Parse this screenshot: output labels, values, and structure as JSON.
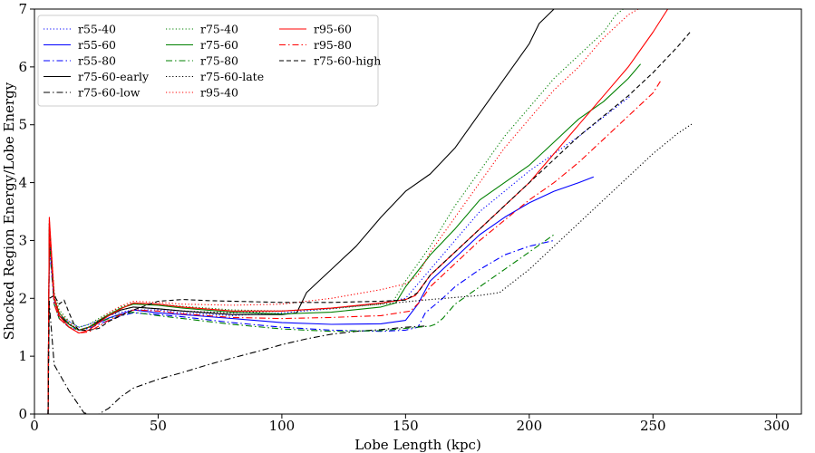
{
  "chart_data": {
    "type": "line",
    "title": "",
    "xlabel": "Lobe Length (kpc)",
    "ylabel": "Shocked Region Energy/Lobe Energy",
    "xlim": [
      0,
      310
    ],
    "ylim": [
      0,
      7
    ],
    "xticks": [
      0,
      50,
      100,
      150,
      200,
      250,
      300
    ],
    "yticks": [
      0,
      1,
      2,
      3,
      4,
      5,
      6,
      7
    ],
    "legend_position": "top-left",
    "legend_columns": 3,
    "series": [
      {
        "name": "r55-40",
        "color": "#0000ff",
        "style": "dotted",
        "x": [
          5.5,
          6,
          8,
          10,
          14,
          18,
          22,
          26,
          30,
          35,
          40,
          50,
          60,
          80,
          100,
          120,
          140,
          150,
          155,
          160,
          170,
          180,
          200,
          220,
          235,
          241
        ],
        "y": [
          0,
          3.1,
          2.0,
          1.7,
          1.6,
          1.5,
          1.55,
          1.62,
          1.7,
          1.76,
          1.8,
          1.8,
          1.75,
          1.7,
          1.75,
          1.82,
          1.92,
          2.0,
          2.25,
          2.5,
          3.0,
          3.5,
          4.2,
          4.8,
          5.3,
          5.5
        ]
      },
      {
        "name": "r55-60",
        "color": "#0000ff",
        "style": "solid",
        "x": [
          5.5,
          6,
          8,
          10,
          14,
          18,
          22,
          26,
          30,
          35,
          40,
          50,
          60,
          80,
          100,
          120,
          140,
          150,
          155,
          160,
          170,
          180,
          190,
          200,
          210,
          220,
          226
        ],
        "y": [
          0,
          3.0,
          2.0,
          1.7,
          1.55,
          1.45,
          1.5,
          1.58,
          1.66,
          1.73,
          1.8,
          1.75,
          1.72,
          1.65,
          1.58,
          1.55,
          1.56,
          1.62,
          1.9,
          2.3,
          2.7,
          3.1,
          3.4,
          3.65,
          3.85,
          4.0,
          4.1
        ]
      },
      {
        "name": "r55-80",
        "color": "#0000ff",
        "style": "dashdot",
        "x": [
          5.5,
          6,
          8,
          10,
          14,
          18,
          22,
          26,
          30,
          35,
          40,
          50,
          60,
          80,
          100,
          120,
          140,
          150,
          155,
          158,
          165,
          170,
          180,
          190,
          200,
          210
        ],
        "y": [
          0,
          2.9,
          1.9,
          1.65,
          1.5,
          1.45,
          1.48,
          1.55,
          1.62,
          1.7,
          1.75,
          1.72,
          1.68,
          1.58,
          1.5,
          1.45,
          1.43,
          1.45,
          1.5,
          1.75,
          2.0,
          2.2,
          2.5,
          2.75,
          2.9,
          3.0
        ]
      },
      {
        "name": "r75-60-early",
        "color": "#000000",
        "style": "solid",
        "x": [
          5.5,
          6,
          8,
          10,
          14,
          18,
          22,
          26,
          30,
          35,
          40,
          50,
          60,
          80,
          100,
          106,
          110,
          115,
          120,
          130,
          140,
          150,
          160,
          170,
          180,
          190,
          200,
          204,
          210,
          220
        ],
        "y": [
          0,
          3.3,
          2.0,
          1.7,
          1.55,
          1.45,
          1.5,
          1.6,
          1.7,
          1.8,
          1.85,
          1.82,
          1.78,
          1.72,
          1.72,
          1.75,
          2.1,
          2.3,
          2.5,
          2.9,
          3.4,
          3.85,
          4.15,
          4.6,
          5.2,
          5.8,
          6.4,
          6.75,
          7.0,
          7.0
        ]
      },
      {
        "name": "r75-60-low",
        "color": "#000000",
        "style": "dashdot",
        "x": [
          5.5,
          6,
          8,
          10,
          14,
          18,
          20,
          22,
          26,
          30,
          35,
          40,
          50,
          60,
          70,
          80,
          90,
          100,
          110,
          120,
          130,
          140,
          150,
          158
        ],
        "y": [
          0,
          1.9,
          0.85,
          0.7,
          0.4,
          0.15,
          0.02,
          0.0,
          0.0,
          0.1,
          0.3,
          0.45,
          0.6,
          0.72,
          0.85,
          0.97,
          1.08,
          1.2,
          1.3,
          1.38,
          1.43,
          1.46,
          1.5,
          1.52
        ]
      },
      {
        "name": "r75-40",
        "color": "#008000",
        "style": "dotted",
        "x": [
          5.5,
          6,
          8,
          10,
          14,
          18,
          22,
          26,
          30,
          35,
          40,
          50,
          60,
          80,
          100,
          120,
          140,
          145,
          150,
          160,
          170,
          180,
          190,
          200,
          210,
          220,
          230,
          235,
          238
        ],
        "y": [
          0,
          3.3,
          2.1,
          1.8,
          1.6,
          1.5,
          1.55,
          1.65,
          1.75,
          1.85,
          1.92,
          1.9,
          1.86,
          1.8,
          1.78,
          1.82,
          1.9,
          1.95,
          2.3,
          2.9,
          3.6,
          4.2,
          4.8,
          5.3,
          5.8,
          6.2,
          6.6,
          6.9,
          7.0
        ]
      },
      {
        "name": "r75-60",
        "color": "#008000",
        "style": "solid",
        "x": [
          5.5,
          6,
          8,
          10,
          14,
          18,
          22,
          26,
          30,
          35,
          40,
          50,
          60,
          80,
          100,
          120,
          140,
          146,
          150,
          160,
          170,
          180,
          190,
          200,
          210,
          220,
          230,
          240,
          245
        ],
        "y": [
          0,
          3.2,
          2.0,
          1.75,
          1.55,
          1.45,
          1.5,
          1.62,
          1.72,
          1.83,
          1.9,
          1.88,
          1.83,
          1.76,
          1.73,
          1.76,
          1.85,
          1.92,
          2.2,
          2.75,
          3.2,
          3.7,
          4.0,
          4.3,
          4.7,
          5.1,
          5.4,
          5.8,
          6.05
        ]
      },
      {
        "name": "r75-80",
        "color": "#008000",
        "style": "dashdot",
        "x": [
          5.5,
          6,
          8,
          10,
          14,
          18,
          22,
          26,
          30,
          35,
          40,
          50,
          60,
          80,
          100,
          120,
          140,
          150,
          160,
          162,
          165,
          170,
          180,
          190,
          200,
          210
        ],
        "y": [
          0,
          3.0,
          1.9,
          1.65,
          1.5,
          1.45,
          1.5,
          1.58,
          1.65,
          1.72,
          1.76,
          1.7,
          1.65,
          1.55,
          1.47,
          1.43,
          1.44,
          1.48,
          1.52,
          1.55,
          1.65,
          1.9,
          2.2,
          2.5,
          2.8,
          3.1
        ]
      },
      {
        "name": "r75-60-late",
        "color": "#000000",
        "style": "dotted",
        "x": [
          5.5,
          6,
          8,
          10,
          14,
          18,
          22,
          26,
          30,
          35,
          40,
          50,
          60,
          80,
          100,
          120,
          140,
          160,
          180,
          188,
          200,
          210,
          220,
          230,
          240,
          250,
          260,
          266
        ],
        "y": [
          0,
          3.2,
          2.0,
          1.7,
          1.55,
          1.45,
          1.5,
          1.6,
          1.7,
          1.8,
          1.85,
          1.82,
          1.78,
          1.75,
          1.78,
          1.83,
          1.9,
          1.98,
          2.05,
          2.1,
          2.5,
          2.9,
          3.3,
          3.7,
          4.1,
          4.5,
          4.85,
          5.02
        ]
      },
      {
        "name": "r95-40",
        "color": "#ff0000",
        "style": "dotted",
        "x": [
          5.5,
          6,
          8,
          10,
          14,
          18,
          22,
          26,
          30,
          35,
          40,
          50,
          60,
          80,
          100,
          120,
          140,
          150,
          155,
          160,
          170,
          180,
          190,
          200,
          210,
          220,
          230,
          240,
          244
        ],
        "y": [
          0,
          3.35,
          2.05,
          1.75,
          1.58,
          1.45,
          1.5,
          1.62,
          1.75,
          1.87,
          1.95,
          1.93,
          1.9,
          1.88,
          1.9,
          2.0,
          2.15,
          2.25,
          2.4,
          2.8,
          3.4,
          4.0,
          4.6,
          5.1,
          5.6,
          6.0,
          6.5,
          6.9,
          7.0
        ]
      },
      {
        "name": "r95-60",
        "color": "#ff0000",
        "style": "solid",
        "x": [
          5.5,
          6,
          8,
          10,
          14,
          18,
          22,
          26,
          30,
          35,
          40,
          50,
          60,
          80,
          100,
          120,
          140,
          150,
          154,
          160,
          170,
          180,
          190,
          200,
          210,
          220,
          230,
          240,
          250,
          256
        ],
        "y": [
          0,
          3.4,
          2.0,
          1.7,
          1.5,
          1.4,
          1.45,
          1.58,
          1.7,
          1.82,
          1.92,
          1.9,
          1.85,
          1.78,
          1.78,
          1.83,
          1.92,
          1.98,
          2.05,
          2.4,
          2.8,
          3.2,
          3.6,
          4.0,
          4.5,
          5.0,
          5.5,
          6.0,
          6.6,
          7.0
        ]
      },
      {
        "name": "r95-80",
        "color": "#ff0000",
        "style": "dashdot",
        "x": [
          5.5,
          6,
          8,
          10,
          14,
          18,
          22,
          26,
          30,
          35,
          40,
          50,
          60,
          80,
          100,
          120,
          140,
          152,
          156,
          160,
          170,
          180,
          190,
          200,
          210,
          220,
          230,
          240,
          250,
          253
        ],
        "y": [
          0,
          3.2,
          1.9,
          1.65,
          1.5,
          1.4,
          1.42,
          1.52,
          1.62,
          1.72,
          1.8,
          1.78,
          1.73,
          1.67,
          1.65,
          1.67,
          1.7,
          1.78,
          1.95,
          2.2,
          2.6,
          3.0,
          3.35,
          3.7,
          4.0,
          4.35,
          4.75,
          5.15,
          5.55,
          5.75
        ]
      },
      {
        "name": "r75-60-high",
        "color": "#000000",
        "style": "dashed",
        "x": [
          5.5,
          6,
          8,
          10,
          12,
          14,
          16,
          18,
          22,
          26,
          30,
          40,
          50,
          60,
          70,
          80,
          100,
          120,
          140,
          150,
          155,
          160,
          170,
          180,
          190,
          200,
          210,
          220,
          230,
          240,
          250,
          260,
          265
        ],
        "y": [
          0,
          2.0,
          2.05,
          1.9,
          1.97,
          1.75,
          1.55,
          1.45,
          1.45,
          1.48,
          1.6,
          1.8,
          1.95,
          1.98,
          1.96,
          1.95,
          1.93,
          1.93,
          1.95,
          1.97,
          2.1,
          2.4,
          2.8,
          3.2,
          3.6,
          4.0,
          4.4,
          4.8,
          5.15,
          5.5,
          5.9,
          6.35,
          6.6
        ]
      }
    ]
  }
}
